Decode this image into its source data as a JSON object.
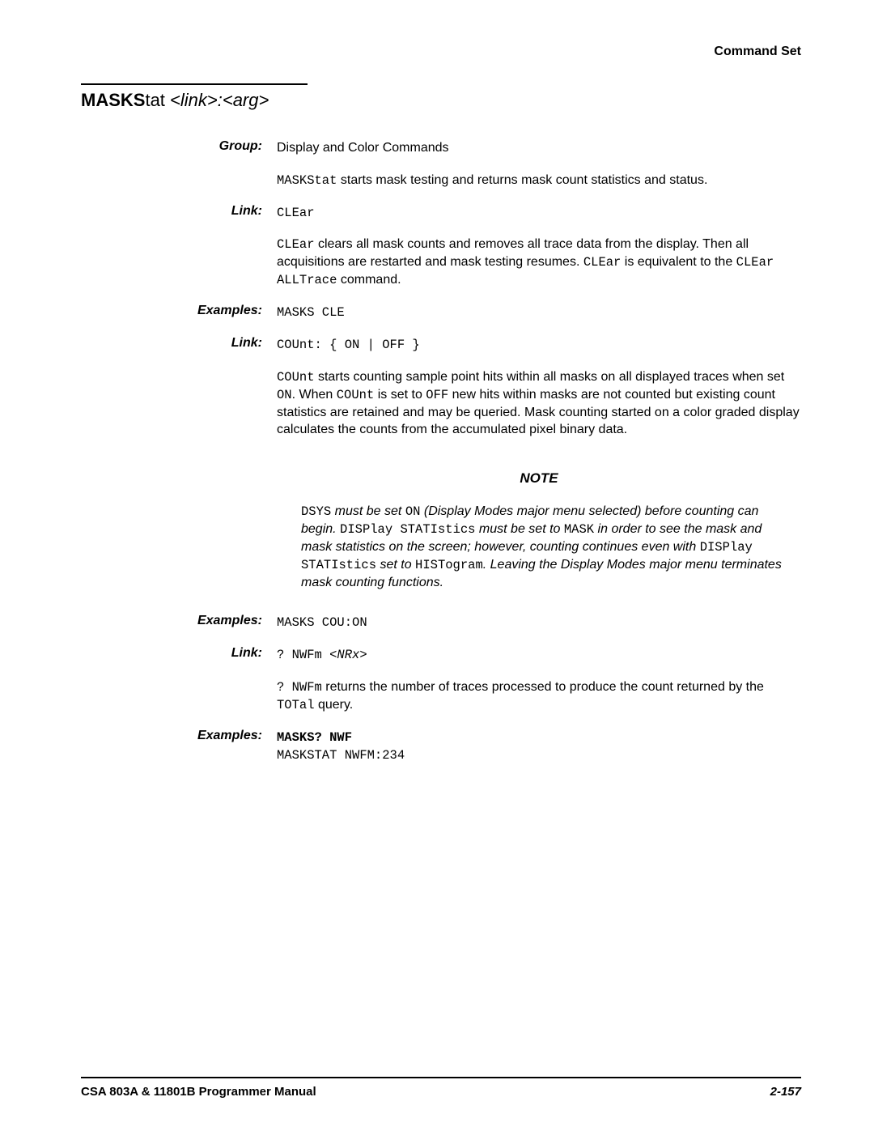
{
  "header": {
    "section": "Command Set"
  },
  "title": {
    "bold": "MASKS",
    "rest": "tat ",
    "args": "<link>:<arg>"
  },
  "rows": [
    {
      "label": "Group:",
      "content": {
        "plain": "Display and Color Commands"
      }
    },
    {
      "label": "",
      "content": {
        "parts": [
          {
            "t": "mono",
            "v": "MASKStat"
          },
          {
            "t": "plain",
            "v": " starts mask testing and returns mask count statistics and status."
          }
        ]
      }
    },
    {
      "label": "Link:",
      "content": {
        "mono": "CLEar"
      }
    },
    {
      "label": "",
      "content": {
        "parts": [
          {
            "t": "mono",
            "v": "CLEar"
          },
          {
            "t": "plain",
            "v": " clears all mask counts and removes all trace data from the display. Then all acquisitions are restarted and mask testing resumes. "
          },
          {
            "t": "mono",
            "v": "CLEar"
          },
          {
            "t": "plain",
            "v": " is equivalent to the "
          },
          {
            "t": "mono",
            "v": "CLEar ALLTrace"
          },
          {
            "t": "plain",
            "v": " command."
          }
        ]
      }
    },
    {
      "label": "Examples:",
      "content": {
        "mono": "MASKS CLE"
      }
    },
    {
      "label": "Link:",
      "content": {
        "mono": "COUnt: { ON | OFF }"
      }
    },
    {
      "label": "",
      "content": {
        "parts": [
          {
            "t": "mono",
            "v": "COUnt"
          },
          {
            "t": "plain",
            "v": " starts counting sample point hits within all masks on all displayed traces when set "
          },
          {
            "t": "mono",
            "v": "ON"
          },
          {
            "t": "plain",
            "v": ". When "
          },
          {
            "t": "mono",
            "v": "COUnt"
          },
          {
            "t": "plain",
            "v": " is set to "
          },
          {
            "t": "mono",
            "v": "OFF"
          },
          {
            "t": "plain",
            "v": " new hits within masks are not counted but existing count statistics are retained and may be queried. Mask counting started on a color graded display calculates the counts from the accumulated pixel binary data."
          }
        ]
      }
    }
  ],
  "note": {
    "heading": "NOTE",
    "parts": [
      {
        "t": "mono",
        "v": "DSYS"
      },
      {
        "t": "italic",
        "v": " must be set "
      },
      {
        "t": "mono",
        "v": "ON"
      },
      {
        "t": "italic",
        "v": " (Display Modes major menu selected) before counting can begin. "
      },
      {
        "t": "mono",
        "v": "DISPlay STATIstics"
      },
      {
        "t": "italic",
        "v": " must be set to "
      },
      {
        "t": "mono",
        "v": "MASK"
      },
      {
        "t": "italic",
        "v": " in order to see the mask and mask statistics on the screen; however, counting continues even with "
      },
      {
        "t": "mono",
        "v": "DISPlay STATIstics"
      },
      {
        "t": "italic",
        "v": " set to "
      },
      {
        "t": "mono",
        "v": "HISTogram"
      },
      {
        "t": "italic",
        "v": ". Leaving the Display Modes major menu terminates mask counting functions."
      }
    ]
  },
  "rows2": [
    {
      "label": "Examples:",
      "content": {
        "mono": "MASKS COU:ON"
      }
    },
    {
      "label": "Link:",
      "content": {
        "parts": [
          {
            "t": "mono",
            "v": "? NWFm "
          },
          {
            "t": "monoarg",
            "v": "<NRx>"
          }
        ]
      }
    },
    {
      "label": "",
      "content": {
        "parts": [
          {
            "t": "mono",
            "v": "? NWFm"
          },
          {
            "t": "plain",
            "v": " returns the number of traces processed to produce the count returned by the "
          },
          {
            "t": "mono",
            "v": "TOTal"
          },
          {
            "t": "plain",
            "v": " query."
          }
        ]
      }
    },
    {
      "label": "Examples:",
      "content": {
        "parts": [
          {
            "t": "monobold",
            "v": "MASKS? NWF"
          },
          {
            "t": "br"
          },
          {
            "t": "mono",
            "v": "MASKSTAT NWFM:234"
          }
        ]
      }
    }
  ],
  "footer": {
    "left": "CSA 803A & 11801B Programmer Manual",
    "right": "2-157"
  }
}
